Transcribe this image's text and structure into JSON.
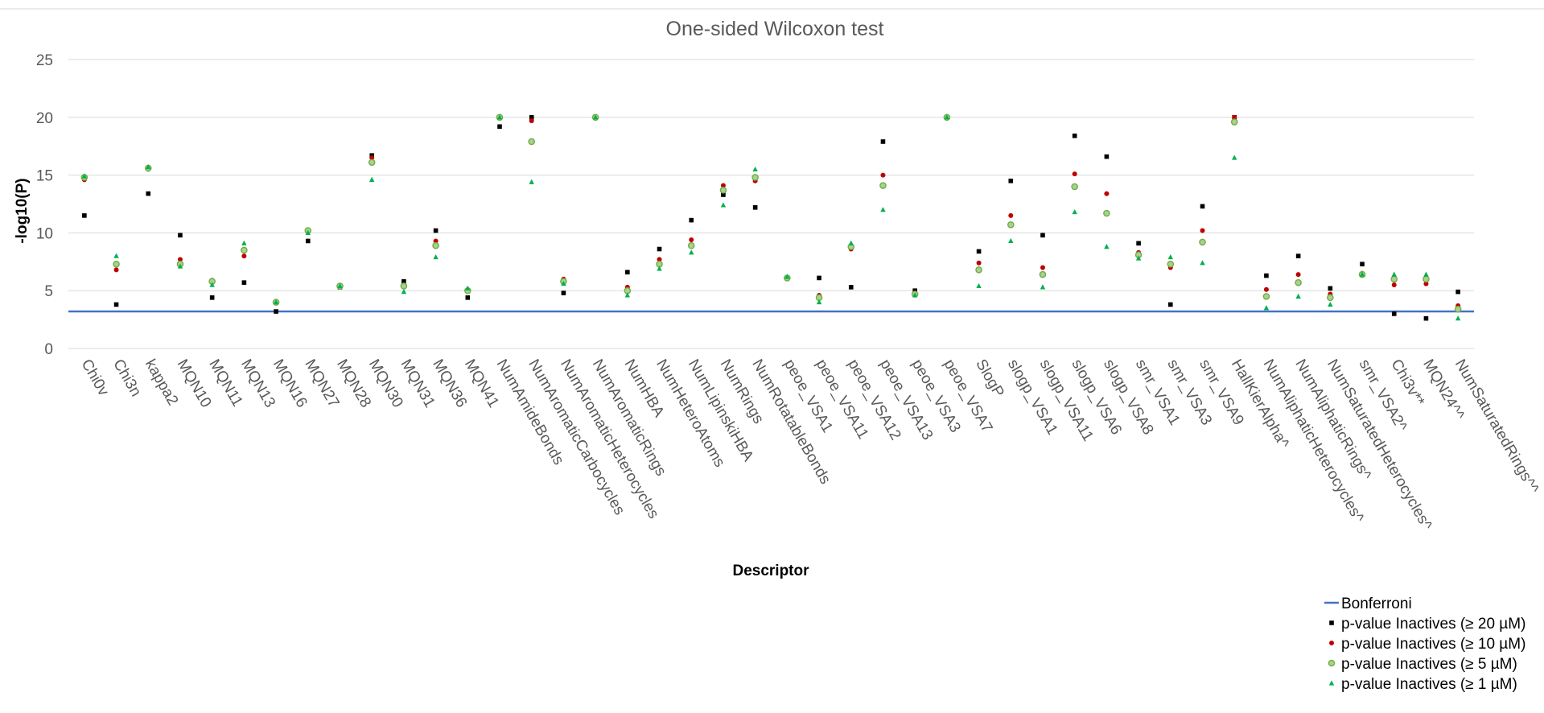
{
  "chart_data": {
    "type": "scatter",
    "title": "One-sided Wilcoxon test",
    "xlabel": "Descriptor",
    "ylabel": "-log10(P)",
    "ylim": [
      0,
      25
    ],
    "yticks": [
      "0",
      "5",
      "10",
      "15",
      "20",
      "25"
    ],
    "grid": "horizontal",
    "legend_position": "bottom-right",
    "categories": [
      "Chi0v",
      "Chi3n",
      "kappa2",
      "MQN10",
      "MQN11",
      "MQN13",
      "MQN16",
      "MQN27",
      "MQN28",
      "MQN30",
      "MQN31",
      "MQN36",
      "MQN41",
      "NumAmideBonds",
      "NumAromaticCarbocycles",
      "NumAromaticHeterocycles",
      "NumAromaticRings",
      "NumHBA",
      "NumHeteroAtoms",
      "NumLipinskiHBA",
      "NumRings",
      "NumRotatableBonds",
      "peoe_VSA1",
      "peoe_VSA11",
      "peoe_VSA12",
      "peoe_VSA13",
      "peoe_VSA3",
      "peoe_VSA7",
      "SlogP",
      "slogp_VSA1",
      "slogp_VSA11",
      "slogp_VSA6",
      "slogp_VSA8",
      "smr_VSA1",
      "smr_VSA3",
      "smr_VSA9",
      "HallKierAlpha^",
      "NumAliphaticHeterocycles^",
      "NumAliphaticRings^",
      "NumSaturatedHeterocycles^",
      "smr_VSA2^",
      "Chi3v**",
      "MQN24^^",
      "NumSaturatedRings^^"
    ],
    "bonferroni": {
      "name": "Bonferroni",
      "value": 3.2,
      "color": "#4472c4"
    },
    "series": [
      {
        "name": "p-value Inactives (≥ 20 µM)",
        "marker": "square",
        "color": "#000000",
        "values": [
          11.5,
          3.8,
          13.4,
          9.8,
          4.4,
          5.7,
          3.2,
          9.3,
          5.3,
          16.7,
          5.8,
          10.2,
          4.4,
          19.2,
          20.0,
          4.8,
          20.0,
          6.6,
          8.6,
          11.1,
          13.3,
          12.2,
          6.1,
          6.1,
          5.3,
          17.9,
          5.0,
          20.0,
          8.4,
          14.5,
          9.8,
          18.4,
          16.6,
          9.1,
          3.8,
          12.3,
          20.0,
          6.3,
          8.0,
          5.2,
          7.3,
          3.0,
          2.6,
          4.9
        ]
      },
      {
        "name": "p-value Inactives (≥ 10 µM)",
        "marker": "circle",
        "color": "#c00000",
        "values": [
          14.6,
          6.8,
          15.5,
          7.7,
          5.9,
          8.0,
          4.0,
          10.1,
          5.4,
          16.5,
          5.5,
          9.3,
          5.0,
          20.0,
          19.7,
          6.0,
          20.0,
          5.3,
          7.7,
          9.4,
          14.1,
          14.5,
          6.1,
          4.6,
          8.6,
          15.0,
          4.8,
          20.0,
          7.4,
          11.5,
          7.0,
          15.1,
          13.4,
          8.3,
          7.0,
          10.2,
          20.0,
          5.1,
          6.4,
          4.7,
          6.5,
          5.5,
          5.6,
          3.7
        ]
      },
      {
        "name": "p-value Inactives (≥ 5 µM)",
        "marker": "circle",
        "color": "#70ad47",
        "values": [
          14.8,
          7.3,
          15.6,
          7.3,
          5.8,
          8.5,
          4.0,
          10.2,
          5.4,
          16.1,
          5.4,
          8.9,
          5.0,
          20.0,
          17.9,
          5.8,
          20.0,
          5.0,
          7.3,
          8.9,
          13.7,
          14.8,
          6.1,
          4.4,
          8.8,
          14.1,
          4.7,
          20.0,
          6.8,
          10.7,
          6.4,
          14.0,
          11.7,
          8.1,
          7.3,
          9.2,
          19.6,
          4.5,
          5.7,
          4.4,
          6.4,
          6.0,
          6.0,
          3.4
        ]
      },
      {
        "name": "p-value Inactives (≥ 1 µM)",
        "marker": "triangle",
        "color": "#00b050",
        "values": [
          14.9,
          8.0,
          15.7,
          7.1,
          5.5,
          9.1,
          4.0,
          10.0,
          5.4,
          14.6,
          4.9,
          7.9,
          5.2,
          20.0,
          14.4,
          5.6,
          20.0,
          4.6,
          6.9,
          8.3,
          12.4,
          15.5,
          6.2,
          4.0,
          9.1,
          12.0,
          4.6,
          20.0,
          5.4,
          9.3,
          5.3,
          11.8,
          8.8,
          7.8,
          7.9,
          7.4,
          16.5,
          3.5,
          4.5,
          3.8,
          6.4,
          6.4,
          6.4,
          2.6
        ]
      }
    ]
  }
}
